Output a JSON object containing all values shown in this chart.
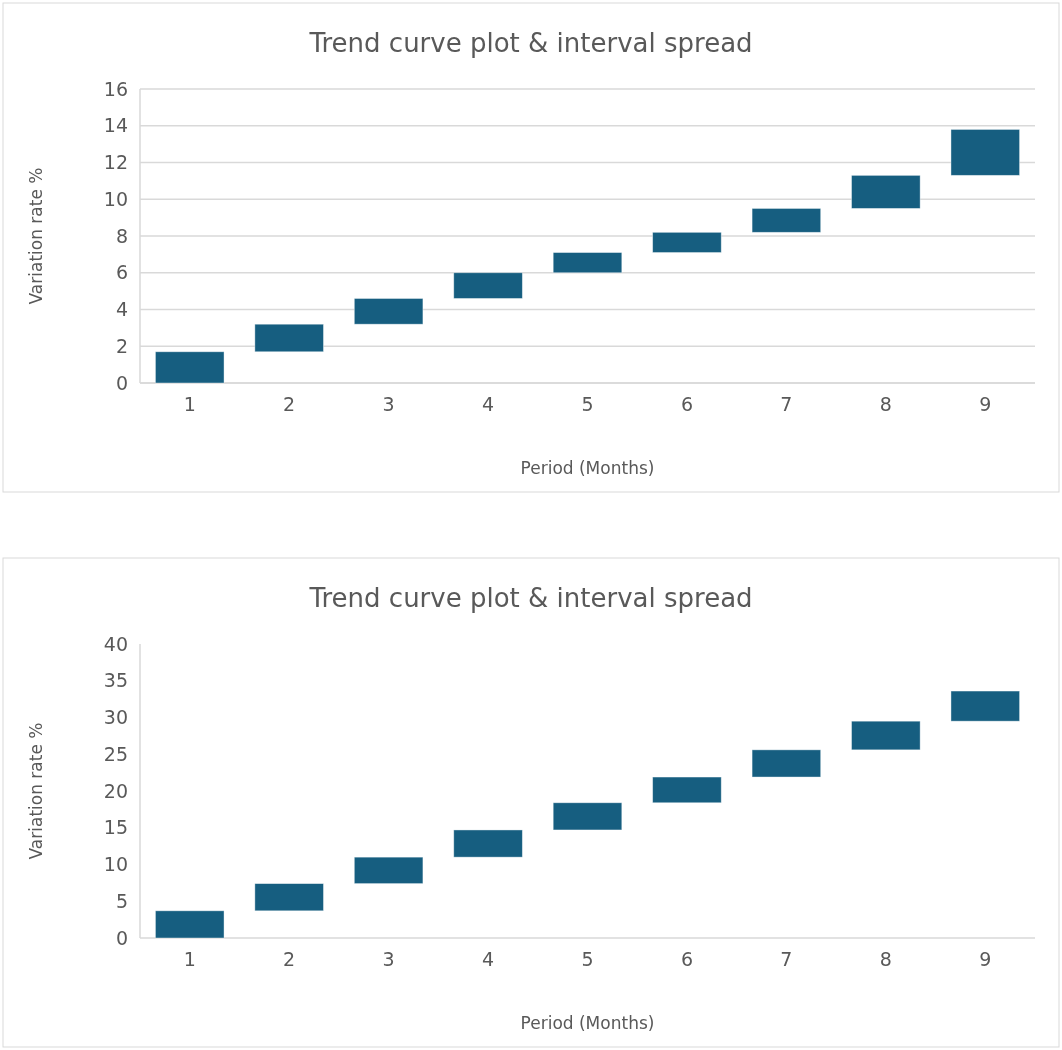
{
  "chart_data": [
    {
      "type": "bar",
      "title": "Trend curve plot & interval spread",
      "xlabel": "Period (Months)",
      "ylabel": "Variation rate %",
      "categories": [
        "1",
        "2",
        "3",
        "4",
        "5",
        "6",
        "7",
        "8",
        "9"
      ],
      "color": "#165e80",
      "values": [
        1.7,
        1.5,
        1.4,
        1.4,
        1.1,
        1.1,
        1.3,
        1.8,
        2.5
      ],
      "base": [
        0,
        1.7,
        3.2,
        4.6,
        6.0,
        7.1,
        8.2,
        9.5,
        11.3
      ],
      "ylim": [
        0,
        16
      ],
      "yticks": [
        0,
        2,
        4,
        6,
        8,
        10,
        12,
        14,
        16
      ],
      "grid": true
    },
    {
      "type": "bar",
      "title": "Trend curve plot & interval spread",
      "xlabel": "Period (Months)",
      "ylabel": "Variation rate %",
      "categories": [
        "1",
        "2",
        "3",
        "4",
        "5",
        "6",
        "7",
        "8",
        "9"
      ],
      "color": "#165e80",
      "values": [
        3.7,
        3.7,
        3.6,
        3.7,
        3.7,
        3.5,
        3.7,
        3.9,
        4.1
      ],
      "base": [
        0,
        3.7,
        7.4,
        11.0,
        14.7,
        18.4,
        21.9,
        25.6,
        29.5
      ],
      "ylim": [
        0,
        40
      ],
      "yticks": [
        0,
        5,
        10,
        15,
        20,
        25,
        30,
        35,
        40
      ],
      "grid": false
    }
  ]
}
